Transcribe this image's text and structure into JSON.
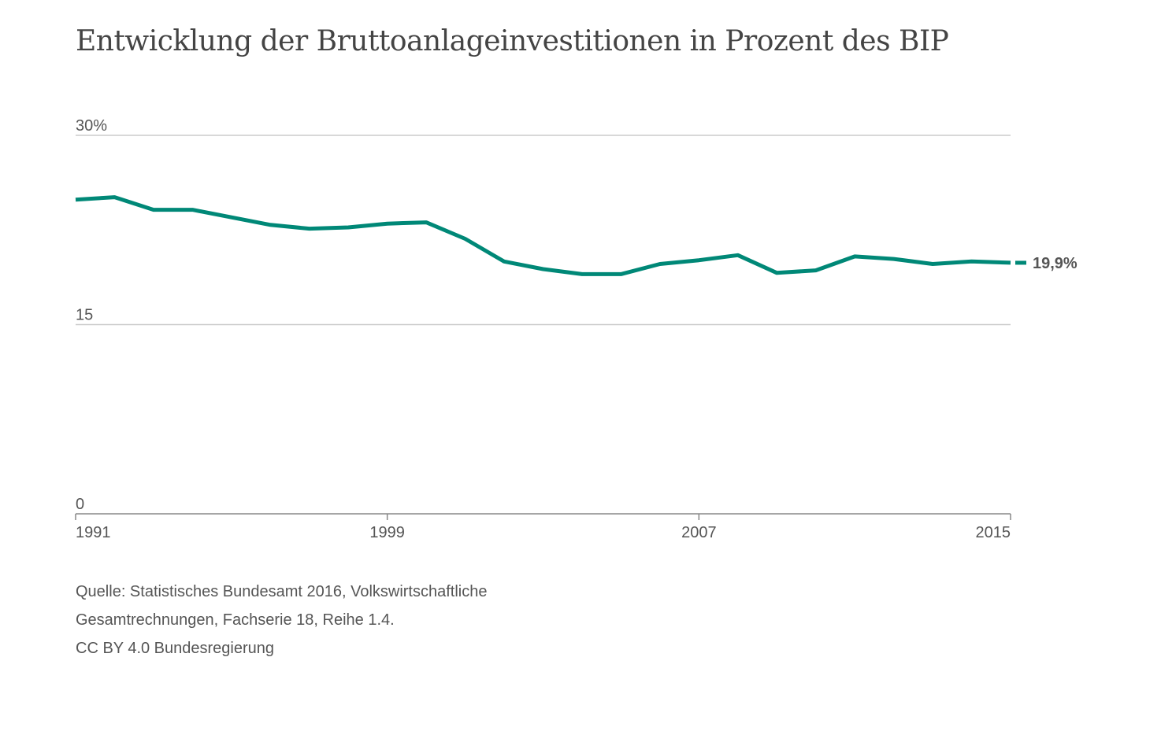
{
  "chart_data": {
    "type": "line",
    "title": "Entwicklung der Bruttoanlageinvestitionen in Prozent des BIP",
    "x": [
      1991,
      1992,
      1993,
      1994,
      1995,
      1996,
      1997,
      1998,
      1999,
      2000,
      2001,
      2002,
      2003,
      2004,
      2005,
      2006,
      2007,
      2008,
      2009,
      2010,
      2011,
      2012,
      2013,
      2014,
      2015
    ],
    "series": [
      {
        "values": [
          24.9,
          25.1,
          24.1,
          24.1,
          23.5,
          22.9,
          22.6,
          22.7,
          23.0,
          23.1,
          21.8,
          20.0,
          19.4,
          19.0,
          19.0,
          19.8,
          20.1,
          20.5,
          19.1,
          19.3,
          20.4,
          20.2,
          19.8,
          20.0,
          19.9
        ],
        "color": "#008877"
      }
    ],
    "ylim": [
      0,
      30
    ],
    "y_ticks": [
      {
        "value": 30,
        "label": "30%"
      },
      {
        "value": 15,
        "label": "15"
      },
      {
        "value": 0,
        "label": "0"
      }
    ],
    "x_ticks": [
      {
        "value": 1991,
        "label": "1991"
      },
      {
        "value": 1999,
        "label": "1999"
      },
      {
        "value": 2007,
        "label": "2007"
      },
      {
        "value": 2015,
        "label": "2015"
      }
    ],
    "end_label": "19,9%",
    "grid": true,
    "source_lines": [
      "Quelle: Statistisches Bundesamt 2016, Volkswirtschaftliche",
      "Gesamtrechnungen, Fachserie 18, Reihe 1.4.",
      "CC BY 4.0 Bundesregierung"
    ]
  }
}
